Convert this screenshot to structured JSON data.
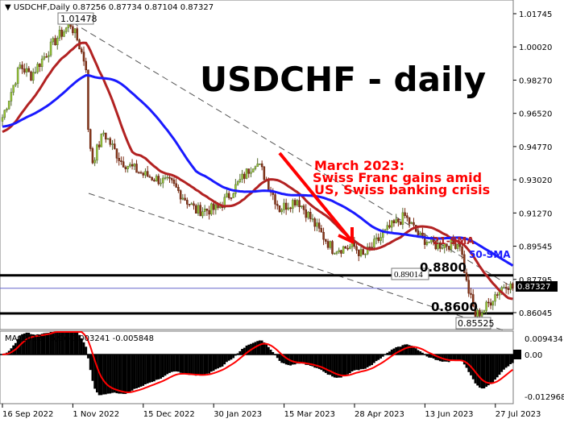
{
  "chart_data": [
    {
      "type": "candlestick",
      "header": {
        "symbol": "USDCHF,Daily",
        "ohlc": "0.87256 0.87734 0.87104 0.87327"
      },
      "title": "USDCHF - daily",
      "ylim": [
        0.853,
        1.025
      ],
      "y_ticks": [
        "1.01745",
        "1.00020",
        "0.98270",
        "0.96520",
        "0.94770",
        "0.93020",
        "0.91270",
        "0.89545",
        "0.87795",
        "0.86045"
      ],
      "x_ticks": [
        "16 Sep 2022",
        "1 Nov 2022",
        "15 Dec 2022",
        "30 Jan 2023",
        "15 Mar 2023",
        "28 Apr 2023",
        "13 Jun 2023",
        "27 Jul 2023"
      ],
      "current_price": "0.87327",
      "close_keypoints": [
        [
          "2022-09-16",
          0.963
        ],
        [
          "2022-09-28",
          0.99
        ],
        [
          "2022-10-05",
          0.985
        ],
        [
          "2022-10-21",
          1.005
        ],
        [
          "2022-10-31",
          1.012
        ],
        [
          "2022-11-03",
          1.004
        ],
        [
          "2022-11-09",
          0.99
        ],
        [
          "2022-11-10",
          0.955
        ],
        [
          "2022-11-14",
          0.94
        ],
        [
          "2022-11-21",
          0.955
        ],
        [
          "2022-12-01",
          0.94
        ],
        [
          "2022-12-15",
          0.933
        ],
        [
          "2023-01-03",
          0.928
        ],
        [
          "2023-01-18",
          0.914
        ],
        [
          "2023-02-01",
          0.915
        ],
        [
          "2023-02-10",
          0.925
        ],
        [
          "2023-02-24",
          0.94
        ],
        [
          "2023-03-01",
          0.935
        ],
        [
          "2023-03-13",
          0.915
        ],
        [
          "2023-03-23",
          0.92
        ],
        [
          "2023-04-05",
          0.905
        ],
        [
          "2023-04-14",
          0.894
        ],
        [
          "2023-04-28",
          0.895
        ],
        [
          "2023-05-04",
          0.89
        ],
        [
          "2023-05-10",
          0.895
        ],
        [
          "2023-05-22",
          0.905
        ],
        [
          "2023-05-31",
          0.911
        ],
        [
          "2023-06-09",
          0.9
        ],
        [
          "2023-06-20",
          0.896
        ],
        [
          "2023-07-05",
          0.897
        ],
        [
          "2023-07-10",
          0.876
        ],
        [
          "2023-07-14",
          0.859
        ],
        [
          "2023-07-20",
          0.862
        ],
        [
          "2023-07-27",
          0.87
        ],
        [
          "2023-08-03",
          0.876
        ],
        [
          "2023-08-08",
          0.8733
        ]
      ],
      "indicators": [
        {
          "name": "21-SMA",
          "color": "#b22222"
        },
        {
          "name": "50-SMA",
          "color": "#1a1aff"
        }
      ],
      "price_labels": [
        "1.01478",
        "0.89014",
        "0.85525"
      ],
      "levels": [
        {
          "label": "0.8800",
          "value": 0.88
        },
        {
          "label": "0.8600",
          "value": 0.86
        }
      ],
      "annotation": [
        "March 2023:",
        "Swiss Franc gains amid",
        "US, Swiss banking crisis"
      ],
      "annotation_color": "#ff0000"
    },
    {
      "type": "histogram",
      "label": "MACD(12,26,9) -0.003241 -0.005848",
      "y_ticks": [
        "0.009434",
        "0.00",
        "-0.012968"
      ],
      "signal_color": "#ff0000"
    }
  ]
}
